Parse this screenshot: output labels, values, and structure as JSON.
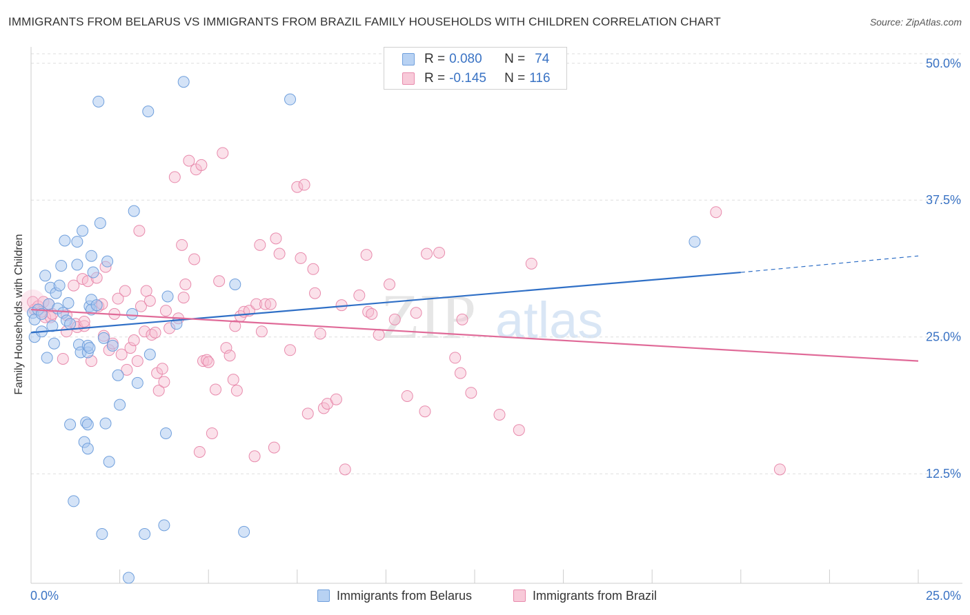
{
  "title": "IMMIGRANTS FROM BELARUS VS IMMIGRANTS FROM BRAZIL FAMILY HOUSEHOLDS WITH CHILDREN CORRELATION CHART",
  "source": "Source: ZipAtlas.com",
  "watermark": {
    "zip": "ZIP",
    "atlas": "atlas"
  },
  "colors": {
    "belarus_fill": "#a9c8f0",
    "belarus_stroke": "#6f9fdc",
    "belarus_line": "#2f6fc6",
    "brazil_fill": "#f6bcd0",
    "brazil_stroke": "#e88aac",
    "brazil_line": "#e06a98",
    "axis_text": "#3a73c4",
    "grid": "#dddddd"
  },
  "legend": {
    "belarus": {
      "r_label": "R = ",
      "r_value": "0.080",
      "n_label": "N = ",
      "n_value": "74"
    },
    "brazil": {
      "r_label": "R = ",
      "r_value": "-0.145",
      "n_label": "N = ",
      "n_value": "116"
    }
  },
  "chart_data": {
    "type": "scatter",
    "title": "IMMIGRANTS FROM BELARUS VS IMMIGRANTS FROM BRAZIL FAMILY HOUSEHOLDS WITH CHILDREN CORRELATION CHART",
    "xlabel": "",
    "ylabel": "Family Households with Children",
    "xlim": [
      0,
      25
    ],
    "ylim": [
      2.5,
      52
    ],
    "x_tick_labels": [
      {
        "value": 0,
        "label": "0.0%"
      },
      {
        "value": 25,
        "label": "25.0%"
      }
    ],
    "y_ticks": [
      {
        "value": 12.5,
        "label": "12.5%"
      },
      {
        "value": 25,
        "label": "25.0%"
      },
      {
        "value": 37.5,
        "label": "37.5%"
      },
      {
        "value": 50,
        "label": "50.0%"
      }
    ],
    "x_minor_ticks": [
      2.5,
      5,
      7.5,
      10,
      12.5,
      15,
      17.5,
      20,
      22.5,
      25
    ],
    "grid": true,
    "series": [
      {
        "name": "Immigrants from Belarus",
        "color": "#6f9fdc",
        "trend": {
          "x0": 0,
          "y0": 25.4,
          "x1": 20,
          "y1": 30.9,
          "dash_to_x": 25,
          "dash_to_y": 32.4
        },
        "points": [
          [
            0.05,
            27.2
          ],
          [
            0.1,
            26.6
          ],
          [
            0.1,
            25.0
          ],
          [
            0.2,
            27.5
          ],
          [
            0.3,
            27.1
          ],
          [
            0.3,
            25.5
          ],
          [
            0.4,
            30.6
          ],
          [
            0.45,
            23.1
          ],
          [
            0.5,
            28.0
          ],
          [
            0.55,
            29.5
          ],
          [
            0.6,
            26.0
          ],
          [
            0.65,
            24.4
          ],
          [
            0.7,
            29.0
          ],
          [
            0.75,
            27.6
          ],
          [
            0.8,
            29.7
          ],
          [
            0.85,
            31.5
          ],
          [
            0.9,
            27.2
          ],
          [
            0.95,
            33.8
          ],
          [
            1.0,
            26.5
          ],
          [
            1.05,
            28.1
          ],
          [
            1.1,
            26.2
          ],
          [
            1.1,
            17.0
          ],
          [
            1.2,
            10.0
          ],
          [
            1.3,
            33.7
          ],
          [
            1.3,
            31.6
          ],
          [
            1.35,
            24.3
          ],
          [
            1.4,
            23.6
          ],
          [
            1.45,
            34.7
          ],
          [
            1.5,
            15.4
          ],
          [
            1.55,
            17.2
          ],
          [
            1.6,
            23.6
          ],
          [
            1.6,
            24.2
          ],
          [
            1.65,
            24.0
          ],
          [
            1.6,
            17.0
          ],
          [
            1.6,
            14.8
          ],
          [
            1.65,
            27.8
          ],
          [
            1.7,
            28.4
          ],
          [
            1.7,
            27.5
          ],
          [
            1.7,
            32.4
          ],
          [
            1.75,
            30.9
          ],
          [
            1.85,
            27.9
          ],
          [
            1.9,
            46.5
          ],
          [
            1.95,
            35.4
          ],
          [
            2.0,
            7.0
          ],
          [
            2.05,
            24.9
          ],
          [
            2.1,
            17.1
          ],
          [
            2.15,
            31.9
          ],
          [
            2.2,
            13.6
          ],
          [
            2.3,
            24.2
          ],
          [
            2.45,
            21.5
          ],
          [
            2.5,
            18.8
          ],
          [
            2.75,
            3.0
          ],
          [
            2.9,
            36.5
          ],
          [
            2.85,
            27.1
          ],
          [
            3.0,
            20.8
          ],
          [
            3.2,
            7.0
          ],
          [
            3.3,
            45.6
          ],
          [
            3.35,
            23.4
          ],
          [
            3.8,
            16.2
          ],
          [
            3.75,
            7.8
          ],
          [
            3.85,
            28.7
          ],
          [
            4.1,
            26.2
          ],
          [
            4.3,
            48.3
          ],
          [
            5.75,
            29.8
          ],
          [
            6.0,
            7.2
          ],
          [
            7.3,
            46.7
          ],
          [
            18.7,
            33.7
          ]
        ]
      },
      {
        "name": "Immigrants from Brazil",
        "color": "#e88aac",
        "trend": {
          "x0": 0,
          "y0": 27.5,
          "x1": 25,
          "y1": 22.8
        },
        "points": [
          [
            0.05,
            28.2
          ],
          [
            0.1,
            27.5
          ],
          [
            0.2,
            27.8
          ],
          [
            0.3,
            27.3
          ],
          [
            0.35,
            28.2
          ],
          [
            0.4,
            26.8
          ],
          [
            0.5,
            28.0
          ],
          [
            0.55,
            26.8
          ],
          [
            0.6,
            27.1
          ],
          [
            0.9,
            23.0
          ],
          [
            1.0,
            27.0
          ],
          [
            1.0,
            25.5
          ],
          [
            1.2,
            29.7
          ],
          [
            1.25,
            26.2
          ],
          [
            1.3,
            25.9
          ],
          [
            1.45,
            30.3
          ],
          [
            1.5,
            26.0
          ],
          [
            1.5,
            26.4
          ],
          [
            1.6,
            30.1
          ],
          [
            1.7,
            22.8
          ],
          [
            1.85,
            30.4
          ],
          [
            1.9,
            27.8
          ],
          [
            2.0,
            28.0
          ],
          [
            2.05,
            25.1
          ],
          [
            2.1,
            31.4
          ],
          [
            2.2,
            23.8
          ],
          [
            2.3,
            24.4
          ],
          [
            2.35,
            27.1
          ],
          [
            2.45,
            28.5
          ],
          [
            2.55,
            23.4
          ],
          [
            2.65,
            29.2
          ],
          [
            2.7,
            22.0
          ],
          [
            2.8,
            24.0
          ],
          [
            2.9,
            24.7
          ],
          [
            3.0,
            22.8
          ],
          [
            3.05,
            34.7
          ],
          [
            3.1,
            27.8
          ],
          [
            3.2,
            25.5
          ],
          [
            3.25,
            29.2
          ],
          [
            3.35,
            28.3
          ],
          [
            3.4,
            25.2
          ],
          [
            3.5,
            25.4
          ],
          [
            3.55,
            21.7
          ],
          [
            3.6,
            20.1
          ],
          [
            3.7,
            22.1
          ],
          [
            3.75,
            20.9
          ],
          [
            3.8,
            27.4
          ],
          [
            3.9,
            25.8
          ],
          [
            4.05,
            39.6
          ],
          [
            4.15,
            26.7
          ],
          [
            4.25,
            33.4
          ],
          [
            4.3,
            28.6
          ],
          [
            4.35,
            29.8
          ],
          [
            4.45,
            41.1
          ],
          [
            4.6,
            32.1
          ],
          [
            4.65,
            40.3
          ],
          [
            4.75,
            14.5
          ],
          [
            4.8,
            40.7
          ],
          [
            4.85,
            22.8
          ],
          [
            4.95,
            22.9
          ],
          [
            5.0,
            22.7
          ],
          [
            5.1,
            16.2
          ],
          [
            5.2,
            20.2
          ],
          [
            5.3,
            30.1
          ],
          [
            5.4,
            41.8
          ],
          [
            5.5,
            24.0
          ],
          [
            5.6,
            23.3
          ],
          [
            5.7,
            21.1
          ],
          [
            5.75,
            26.0
          ],
          [
            5.8,
            20.1
          ],
          [
            5.9,
            26.9
          ],
          [
            6.0,
            27.3
          ],
          [
            6.15,
            27.4
          ],
          [
            6.3,
            14.1
          ],
          [
            6.35,
            28.0
          ],
          [
            6.45,
            33.4
          ],
          [
            6.5,
            25.5
          ],
          [
            6.6,
            28.0
          ],
          [
            6.75,
            28.0
          ],
          [
            6.85,
            14.9
          ],
          [
            6.9,
            34.0
          ],
          [
            7.0,
            32.6
          ],
          [
            7.3,
            23.8
          ],
          [
            7.5,
            38.7
          ],
          [
            7.6,
            32.2
          ],
          [
            7.7,
            38.9
          ],
          [
            7.8,
            18.0
          ],
          [
            7.95,
            31.2
          ],
          [
            8.0,
            29.0
          ],
          [
            8.15,
            25.3
          ],
          [
            8.25,
            18.5
          ],
          [
            8.35,
            18.9
          ],
          [
            8.6,
            19.3
          ],
          [
            8.75,
            27.9
          ],
          [
            8.85,
            12.9
          ],
          [
            9.25,
            28.8
          ],
          [
            9.45,
            32.5
          ],
          [
            9.5,
            27.3
          ],
          [
            9.6,
            27.1
          ],
          [
            9.8,
            25.2
          ],
          [
            10.1,
            29.8
          ],
          [
            10.25,
            26.6
          ],
          [
            10.6,
            19.6
          ],
          [
            10.85,
            27.2
          ],
          [
            11.1,
            18.2
          ],
          [
            11.15,
            32.6
          ],
          [
            11.5,
            32.7
          ],
          [
            11.95,
            23.1
          ],
          [
            12.1,
            21.7
          ],
          [
            12.15,
            26.6
          ],
          [
            12.4,
            19.9
          ],
          [
            13.2,
            17.9
          ],
          [
            13.75,
            16.5
          ],
          [
            14.1,
            31.7
          ],
          [
            19.3,
            36.4
          ],
          [
            21.1,
            12.9
          ]
        ]
      }
    ]
  },
  "bottom_legend": [
    {
      "label": "Immigrants from Belarus"
    },
    {
      "label": "Immigrants from Brazil"
    }
  ]
}
